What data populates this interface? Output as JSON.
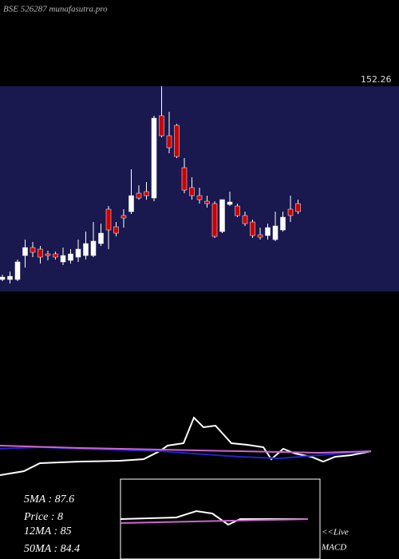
{
  "chart_data": [
    {
      "type": "candlestick",
      "title": "BSE 526287 munafasutra.pro",
      "ylim": [
        23.76,
        152.26
      ],
      "yticks": [
        152.26
      ],
      "up_color": "#ffffff",
      "down_color": "#cc0000",
      "background": "#191950",
      "open": [
        31.26,
        31.26,
        31.26,
        46.26,
        51.26,
        50.26,
        47.26,
        47.26,
        42.26,
        43.26,
        45.26,
        46.26,
        46.26,
        53.76,
        75.26,
        64.26,
        71.26,
        73.76,
        85.26,
        86.26,
        82.26,
        133.76,
        121.26,
        127.76,
        101.26,
        88.76,
        83.76,
        80.26,
        78.76,
        61.26,
        78.26,
        77.26,
        71.26,
        67.26,
        59.26,
        58.76,
        56.26,
        62.26,
        75.26,
        78.76
      ],
      "high": [
        34.26,
        36.26,
        43.76,
        56.26,
        54.76,
        52.26,
        49.26,
        48.76,
        51.26,
        50.26,
        56.26,
        61.26,
        67.26,
        66.26,
        77.26,
        67.26,
        75.26,
        100.26,
        90.26,
        92.26,
        133.76,
        152.26,
        136.26,
        128.76,
        107.26,
        95.26,
        88.76,
        83.76,
        80.26,
        81.26,
        86.26,
        78.76,
        73.76,
        68.76,
        63.76,
        66.26,
        73.76,
        73.76,
        83.76,
        81.26
      ],
      "low": [
        30.26,
        28.76,
        30.26,
        38.76,
        45.26,
        41.26,
        43.26,
        43.76,
        40.26,
        41.26,
        42.26,
        43.76,
        45.26,
        52.26,
        50.26,
        58.26,
        63.76,
        72.26,
        81.26,
        81.26,
        80.26,
        120.26,
        110.26,
        107.26,
        85.26,
        81.26,
        78.76,
        76.26,
        57.26,
        60.26,
        77.26,
        70.26,
        64.76,
        57.26,
        56.26,
        56.26,
        55.26,
        61.26,
        67.26,
        72.26
      ],
      "close": [
        32.76,
        33.26,
        42.26,
        51.26,
        48.26,
        45.26,
        46.26,
        45.26,
        46.26,
        47.26,
        50.26,
        53.76,
        55.26,
        60.26,
        62.26,
        60.26,
        69.76,
        83.76,
        82.26,
        83.76,
        132.26,
        121.26,
        113.76,
        108.26,
        87.26,
        83.76,
        81.26,
        78.76,
        58.26,
        81.26,
        79.76,
        71.26,
        66.26,
        58.76,
        57.76,
        63.76,
        64.76,
        70.26,
        71.26,
        73.76
      ],
      "annotations": [
        "5MA : 87.6",
        "Price : 8",
        "12MA : 85",
        "50MA : 84.4",
        "<<Live",
        "MACD"
      ]
    },
    {
      "type": "line",
      "xlim": [
        0,
        500
      ],
      "ylim": [
        0,
        100
      ],
      "series": [
        {
          "color": "#ffffff",
          "x": [
            0,
            30,
            50,
            100,
            150,
            180,
            200,
            210,
            230,
            243,
            255,
            270,
            290,
            310,
            330,
            340,
            355,
            370,
            390,
            405,
            420,
            440,
            465
          ],
          "values": [
            5,
            10,
            20,
            22,
            23,
            25,
            35,
            42,
            45,
            77,
            65,
            67,
            45,
            43,
            40,
            25,
            38,
            32,
            28,
            22,
            28,
            30,
            35
          ]
        },
        {
          "color": "#2222cc",
          "x": [
            0,
            50,
            100,
            200,
            300,
            350,
            400,
            465
          ],
          "values": [
            38,
            40,
            38,
            35,
            28,
            26,
            30,
            35
          ]
        },
        {
          "color": "#cc66cc",
          "x": [
            0,
            100,
            200,
            300,
            400,
            465
          ],
          "values": [
            42,
            39,
            37,
            35,
            33,
            35
          ]
        }
      ]
    },
    {
      "type": "line",
      "xlim": [
        0,
        250
      ],
      "ylim": [
        0,
        100
      ],
      "series": [
        {
          "color": "#ffffff",
          "x": [
            0,
            70,
            95,
            115,
            135,
            150,
            235
          ],
          "values": [
            50,
            52,
            60,
            57,
            43,
            50,
            50
          ]
        },
        {
          "color": "#cc66cc",
          "x": [
            0,
            235
          ],
          "values": [
            45,
            50
          ]
        }
      ]
    }
  ]
}
